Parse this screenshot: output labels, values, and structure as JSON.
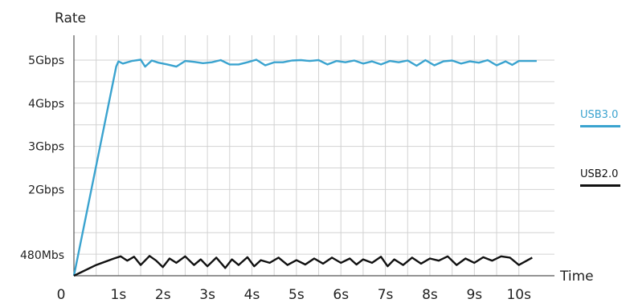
{
  "chart_data": {
    "type": "line",
    "title": "",
    "ylabel": "Rate",
    "xlabel": "Time",
    "x_ticks": [
      "0",
      "1s",
      "2s",
      "3s",
      "4s",
      "5s",
      "6s",
      "7s",
      "8s",
      "9s",
      "10s"
    ],
    "y_ticks": [
      {
        "label": "480Mbs",
        "value": 0.48
      },
      {
        "label": "2Gbps",
        "value": 2
      },
      {
        "label": "3Gbps",
        "value": 3
      },
      {
        "label": "4Gbps",
        "value": 4
      },
      {
        "label": "5Gbps",
        "value": 5
      }
    ],
    "xlim": [
      0,
      10.8
    ],
    "ylim": [
      0,
      5.5
    ],
    "grid": true,
    "legend_position": "right",
    "series": [
      {
        "name": "USB3.0",
        "color": "#3aa3cf",
        "points": [
          [
            0,
            0
          ],
          [
            0.95,
            4.85
          ],
          [
            1.0,
            4.97
          ],
          [
            1.1,
            4.92
          ],
          [
            1.3,
            4.98
          ],
          [
            1.5,
            5.01
          ],
          [
            1.6,
            4.85
          ],
          [
            1.75,
            4.99
          ],
          [
            1.9,
            4.94
          ],
          [
            2.1,
            4.9
          ],
          [
            2.3,
            4.85
          ],
          [
            2.5,
            4.98
          ],
          [
            2.7,
            4.96
          ],
          [
            2.9,
            4.93
          ],
          [
            3.1,
            4.95
          ],
          [
            3.3,
            5.0
          ],
          [
            3.5,
            4.9
          ],
          [
            3.7,
            4.9
          ],
          [
            3.9,
            4.95
          ],
          [
            4.1,
            5.01
          ],
          [
            4.3,
            4.88
          ],
          [
            4.5,
            4.95
          ],
          [
            4.7,
            4.95
          ],
          [
            4.9,
            4.99
          ],
          [
            5.1,
            5.0
          ],
          [
            5.3,
            4.98
          ],
          [
            5.5,
            5.0
          ],
          [
            5.7,
            4.9
          ],
          [
            5.9,
            4.98
          ],
          [
            6.1,
            4.95
          ],
          [
            6.3,
            4.99
          ],
          [
            6.5,
            4.92
          ],
          [
            6.7,
            4.97
          ],
          [
            6.9,
            4.9
          ],
          [
            7.1,
            4.98
          ],
          [
            7.3,
            4.95
          ],
          [
            7.5,
            4.99
          ],
          [
            7.7,
            4.87
          ],
          [
            7.9,
            5.0
          ],
          [
            8.1,
            4.88
          ],
          [
            8.3,
            4.97
          ],
          [
            8.5,
            4.99
          ],
          [
            8.7,
            4.92
          ],
          [
            8.9,
            4.97
          ],
          [
            9.1,
            4.94
          ],
          [
            9.3,
            5.0
          ],
          [
            9.5,
            4.88
          ],
          [
            9.7,
            4.97
          ],
          [
            9.85,
            4.89
          ],
          [
            10.0,
            4.98
          ],
          [
            10.4,
            4.98
          ]
        ]
      },
      {
        "name": "USB2.0",
        "color": "#111111",
        "points": [
          [
            0,
            0
          ],
          [
            0.5,
            0.25
          ],
          [
            0.9,
            0.4
          ],
          [
            1.05,
            0.45
          ],
          [
            1.2,
            0.35
          ],
          [
            1.35,
            0.44
          ],
          [
            1.5,
            0.25
          ],
          [
            1.7,
            0.46
          ],
          [
            1.85,
            0.35
          ],
          [
            2.0,
            0.2
          ],
          [
            2.15,
            0.4
          ],
          [
            2.3,
            0.3
          ],
          [
            2.5,
            0.45
          ],
          [
            2.7,
            0.25
          ],
          [
            2.85,
            0.38
          ],
          [
            3.0,
            0.22
          ],
          [
            3.2,
            0.42
          ],
          [
            3.4,
            0.18
          ],
          [
            3.55,
            0.38
          ],
          [
            3.7,
            0.25
          ],
          [
            3.9,
            0.43
          ],
          [
            4.05,
            0.22
          ],
          [
            4.2,
            0.36
          ],
          [
            4.4,
            0.3
          ],
          [
            4.6,
            0.42
          ],
          [
            4.8,
            0.25
          ],
          [
            5.0,
            0.36
          ],
          [
            5.2,
            0.26
          ],
          [
            5.4,
            0.4
          ],
          [
            5.6,
            0.28
          ],
          [
            5.8,
            0.42
          ],
          [
            6.0,
            0.3
          ],
          [
            6.2,
            0.4
          ],
          [
            6.35,
            0.26
          ],
          [
            6.5,
            0.38
          ],
          [
            6.7,
            0.3
          ],
          [
            6.9,
            0.44
          ],
          [
            7.05,
            0.22
          ],
          [
            7.2,
            0.38
          ],
          [
            7.4,
            0.25
          ],
          [
            7.6,
            0.42
          ],
          [
            7.8,
            0.28
          ],
          [
            8.0,
            0.4
          ],
          [
            8.2,
            0.35
          ],
          [
            8.4,
            0.45
          ],
          [
            8.6,
            0.25
          ],
          [
            8.8,
            0.4
          ],
          [
            9.0,
            0.3
          ],
          [
            9.2,
            0.43
          ],
          [
            9.4,
            0.35
          ],
          [
            9.6,
            0.45
          ],
          [
            9.8,
            0.42
          ],
          [
            10.0,
            0.25
          ],
          [
            10.3,
            0.42
          ]
        ]
      }
    ]
  }
}
